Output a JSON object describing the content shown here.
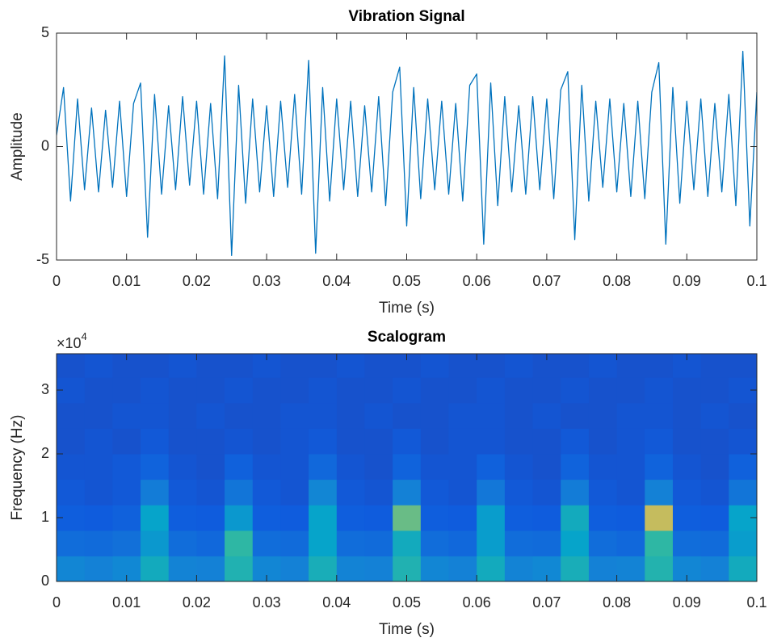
{
  "chart_data": [
    {
      "type": "line",
      "title": "Vibration Signal",
      "xlabel": "Time (s)",
      "ylabel": "Amplitude",
      "x": [
        0,
        0.001,
        0.002,
        0.003,
        0.004,
        0.005,
        0.006,
        0.007,
        0.008,
        0.009,
        0.01,
        0.011,
        0.012,
        0.013,
        0.014,
        0.015,
        0.016,
        0.017,
        0.018,
        0.019,
        0.02,
        0.021,
        0.022,
        0.023,
        0.024,
        0.025,
        0.026,
        0.027,
        0.028,
        0.029,
        0.03,
        0.031,
        0.032,
        0.033,
        0.034,
        0.035,
        0.036,
        0.037,
        0.038,
        0.039,
        0.04,
        0.041,
        0.042,
        0.043,
        0.044,
        0.045,
        0.046,
        0.047,
        0.048,
        0.049,
        0.05,
        0.051,
        0.052,
        0.053,
        0.054,
        0.055,
        0.056,
        0.057,
        0.058,
        0.059,
        0.06,
        0.061,
        0.062,
        0.063,
        0.064,
        0.065,
        0.066,
        0.067,
        0.068,
        0.069,
        0.07,
        0.071,
        0.072,
        0.073,
        0.074,
        0.075,
        0.076,
        0.077,
        0.078,
        0.079,
        0.08,
        0.081,
        0.082,
        0.083,
        0.084,
        0.085,
        0.086,
        0.087,
        0.088,
        0.089,
        0.09,
        0.091,
        0.092,
        0.093,
        0.094,
        0.095,
        0.096,
        0.097,
        0.098,
        0.099,
        0.1
      ],
      "series": [
        {
          "color": "#0072bd",
          "values": [
            0.5,
            2.6,
            -2.4,
            2.1,
            -1.9,
            1.7,
            -2.0,
            1.6,
            -1.8,
            2.0,
            -2.2,
            1.9,
            2.8,
            -4.0,
            2.3,
            -2.1,
            1.8,
            -1.9,
            2.2,
            -1.7,
            2.0,
            -2.1,
            1.9,
            -2.3,
            4.0,
            -4.8,
            2.7,
            -2.5,
            2.1,
            -2.0,
            1.8,
            -2.2,
            2.0,
            -1.8,
            2.3,
            -2.1,
            3.8,
            -4.7,
            2.6,
            -2.4,
            2.1,
            -1.9,
            2.0,
            -2.2,
            1.8,
            -2.0,
            2.2,
            -2.6,
            2.4,
            3.5,
            -3.5,
            2.6,
            -2.3,
            2.1,
            -1.9,
            2.0,
            -2.1,
            1.9,
            -2.4,
            2.7,
            3.2,
            -4.3,
            2.8,
            -2.6,
            2.2,
            -2.0,
            1.8,
            -2.1,
            2.2,
            -1.9,
            2.1,
            -2.3,
            2.5,
            3.3,
            -4.1,
            2.7,
            -2.4,
            2.0,
            -1.8,
            2.1,
            -2.0,
            1.9,
            -2.2,
            2.0,
            -2.3,
            2.4,
            3.7,
            -4.3,
            2.6,
            -2.5,
            2.0,
            -1.9,
            2.1,
            -2.2,
            1.9,
            -2.0,
            2.3,
            -2.6,
            4.2,
            -3.5,
            2.4
          ]
        }
      ],
      "xlim": [
        0,
        0.1
      ],
      "xticks": [
        0,
        0.01,
        0.02,
        0.03,
        0.04,
        0.05,
        0.06,
        0.07,
        0.08,
        0.09,
        0.1
      ],
      "ylim": [
        -5,
        5
      ],
      "yticks": [
        -5,
        0,
        5
      ]
    },
    {
      "type": "heatmap",
      "title": "Scalogram",
      "xlabel": "Time (s)",
      "ylabel": "Frequency (Hz)",
      "y_multiplier": "×10",
      "y_multiplier_power": "4",
      "colormap": "parula",
      "x": [
        0.002,
        0.006,
        0.01,
        0.014,
        0.018,
        0.022,
        0.026,
        0.03,
        0.034,
        0.038,
        0.042,
        0.046,
        0.05,
        0.054,
        0.058,
        0.062,
        0.066,
        0.07,
        0.074,
        0.078,
        0.082,
        0.086,
        0.09,
        0.094,
        0.098
      ],
      "y": [
        2000,
        6000,
        10000,
        14000,
        18000,
        22000,
        26000,
        30000,
        34000
      ],
      "z": [
        [
          0.32,
          0.3,
          0.33,
          0.5,
          0.31,
          0.3,
          0.55,
          0.32,
          0.3,
          0.52,
          0.31,
          0.3,
          0.55,
          0.32,
          0.3,
          0.5,
          0.31,
          0.33,
          0.52,
          0.3,
          0.31,
          0.56,
          0.32,
          0.3,
          0.5
        ],
        [
          0.22,
          0.21,
          0.23,
          0.4,
          0.22,
          0.2,
          0.6,
          0.22,
          0.21,
          0.45,
          0.22,
          0.21,
          0.5,
          0.22,
          0.2,
          0.42,
          0.22,
          0.21,
          0.45,
          0.22,
          0.2,
          0.6,
          0.22,
          0.21,
          0.42
        ],
        [
          0.16,
          0.15,
          0.17,
          0.45,
          0.16,
          0.15,
          0.4,
          0.16,
          0.15,
          0.45,
          0.16,
          0.15,
          0.7,
          0.16,
          0.15,
          0.42,
          0.16,
          0.15,
          0.5,
          0.16,
          0.15,
          0.85,
          0.16,
          0.15,
          0.45
        ],
        [
          0.14,
          0.13,
          0.14,
          0.28,
          0.14,
          0.13,
          0.25,
          0.14,
          0.13,
          0.32,
          0.14,
          0.13,
          0.3,
          0.14,
          0.13,
          0.26,
          0.14,
          0.13,
          0.28,
          0.14,
          0.13,
          0.3,
          0.14,
          0.13,
          0.25
        ],
        [
          0.13,
          0.13,
          0.14,
          0.18,
          0.13,
          0.12,
          0.17,
          0.13,
          0.13,
          0.2,
          0.13,
          0.12,
          0.18,
          0.13,
          0.13,
          0.17,
          0.13,
          0.12,
          0.18,
          0.13,
          0.13,
          0.18,
          0.13,
          0.12,
          0.17
        ],
        [
          0.12,
          0.13,
          0.12,
          0.14,
          0.12,
          0.12,
          0.13,
          0.12,
          0.13,
          0.14,
          0.12,
          0.12,
          0.14,
          0.12,
          0.13,
          0.13,
          0.12,
          0.12,
          0.14,
          0.12,
          0.13,
          0.14,
          0.12,
          0.12,
          0.13
        ],
        [
          0.12,
          0.12,
          0.13,
          0.13,
          0.12,
          0.13,
          0.12,
          0.12,
          0.13,
          0.13,
          0.12,
          0.13,
          0.12,
          0.12,
          0.13,
          0.13,
          0.12,
          0.13,
          0.12,
          0.12,
          0.13,
          0.13,
          0.12,
          0.13,
          0.12
        ],
        [
          0.13,
          0.12,
          0.12,
          0.13,
          0.12,
          0.12,
          0.13,
          0.12,
          0.12,
          0.13,
          0.12,
          0.12,
          0.13,
          0.12,
          0.12,
          0.13,
          0.12,
          0.12,
          0.13,
          0.12,
          0.12,
          0.13,
          0.12,
          0.12,
          0.13
        ],
        [
          0.12,
          0.13,
          0.12,
          0.12,
          0.13,
          0.12,
          0.12,
          0.13,
          0.12,
          0.12,
          0.13,
          0.12,
          0.12,
          0.13,
          0.12,
          0.12,
          0.13,
          0.12,
          0.12,
          0.13,
          0.12,
          0.12,
          0.13,
          0.12,
          0.12
        ]
      ],
      "xlim": [
        0,
        0.1
      ],
      "xticks": [
        0,
        0.01,
        0.02,
        0.03,
        0.04,
        0.05,
        0.06,
        0.07,
        0.08,
        0.09,
        0.1
      ],
      "ylim": [
        0,
        35700
      ],
      "yticks": [
        {
          "value": 0,
          "label": "0"
        },
        {
          "value": 10000,
          "label": "1"
        },
        {
          "value": 20000,
          "label": "2"
        },
        {
          "value": 30000,
          "label": "3"
        }
      ]
    }
  ]
}
